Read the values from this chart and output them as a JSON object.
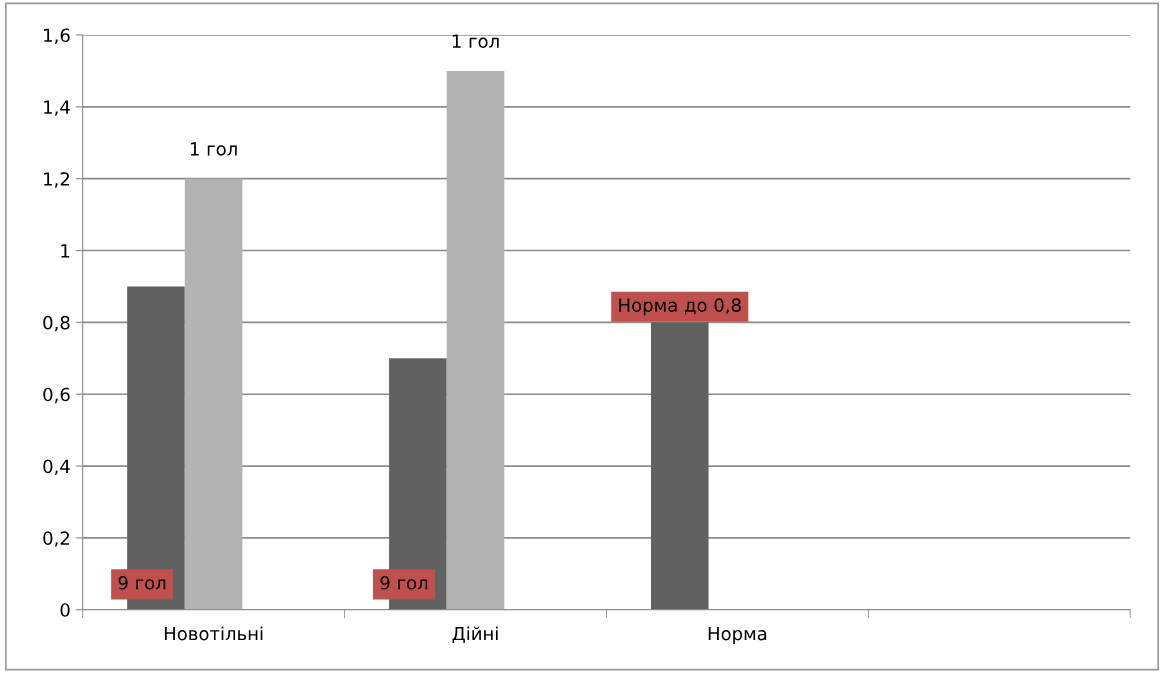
{
  "chart_data": {
    "type": "bar",
    "categories": [
      "Новотільні",
      "Дійні",
      "Норма",
      null
    ],
    "series": [
      {
        "color": "#616161",
        "values": [
          0.9,
          0.7,
          0.8,
          null
        ]
      },
      {
        "color": "#b3b3b3",
        "values": [
          1.2,
          1.5,
          null,
          null
        ]
      }
    ],
    "ylim": [
      0,
      1.6
    ],
    "yticks": [
      0,
      {
        "value": 0.2,
        "label": "0,2"
      },
      {
        "value": 0.4,
        "label": "0,4"
      },
      {
        "value": 0.6,
        "label": "0,6"
      },
      {
        "value": 0.8,
        "label": "0,8"
      },
      1,
      {
        "value": 1.2,
        "label": "1,2"
      },
      {
        "value": 1.4,
        "label": "1,4"
      },
      {
        "value": 1.6,
        "label": "1,6"
      }
    ],
    "grid": "y",
    "annotations": [
      {
        "text": "1 гол",
        "x": "Новотільні",
        "y": 1.2
      },
      {
        "text": "1 гол",
        "x": "Дійні",
        "y": 1.5
      },
      {
        "text": "9 гол",
        "x": "Новотільні",
        "y": 0
      },
      {
        "text": "9 гол",
        "x": "Дійні",
        "y": 0
      },
      "Норма до 0,8"
    ]
  }
}
